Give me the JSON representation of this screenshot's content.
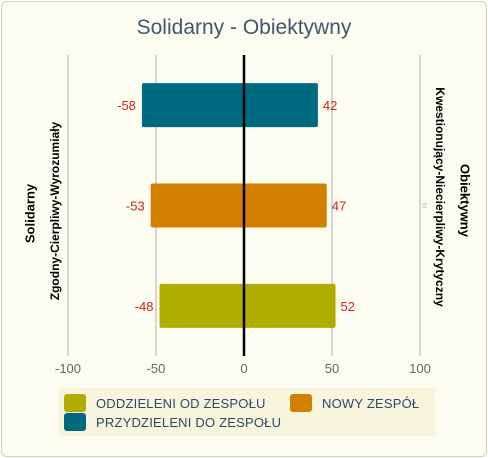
{
  "chart_data": {
    "type": "bar",
    "orientation": "horizontal",
    "stacked": true,
    "title": "Solidarny - Obiektywny",
    "left_labels": [
      "Solidarny",
      "Zgodny-Cierpliwy-Wyrozumiały"
    ],
    "right_labels": [
      "Kwestionujący-Niecierpliwy-Krytyczny",
      "Obiektywny"
    ],
    "xlim": [
      -100,
      100
    ],
    "xticks": [
      "-100",
      "-50",
      "0",
      "50",
      "100"
    ],
    "grid": true,
    "legend_position": "bottom",
    "categories": [
      "PRZYDZIELENI DO ZESPOŁU",
      "NOWY ZESPÓŁ",
      "ODDZIELENI OD ZESPOŁU"
    ],
    "series": [
      {
        "name": "PRZYDZIELENI DO ZESPOŁU",
        "color": "#006a80",
        "negative": -58,
        "positive": 42
      },
      {
        "name": "NOWY ZESPÓŁ",
        "color": "#d37f00",
        "negative": -53,
        "positive": 47
      },
      {
        "name": "ODDZIELENI OD ZESPOŁU",
        "color": "#afad00",
        "negative": -48,
        "positive": 52
      }
    ],
    "legend_order": [
      "ODDZIELENI OD ZESPOŁU",
      "NOWY ZESPÓŁ",
      "PRZYDZIELENI DO ZESPOŁU"
    ],
    "value_label_color": "#c0281e"
  }
}
